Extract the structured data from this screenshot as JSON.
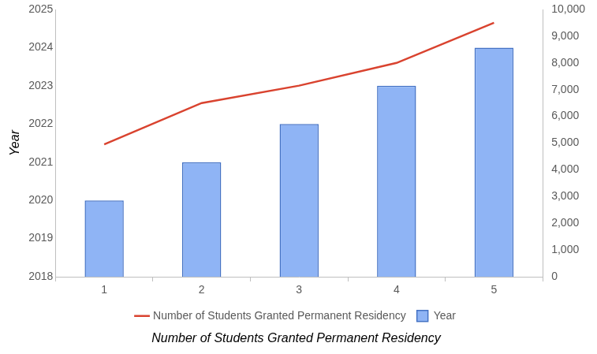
{
  "chart_data": {
    "type": "bar",
    "x_label": "Number of Students Granted Permanent Residency",
    "y_label": "Year",
    "categories": [
      "1",
      "2",
      "3",
      "4",
      "5"
    ],
    "series": [
      {
        "name": "Year",
        "type": "bar",
        "color": "#8fb4f5",
        "values": [
          2020,
          2021,
          2022,
          2023,
          2024
        ]
      },
      {
        "name": "Number of Students Granted Permanent Residency",
        "type": "line",
        "axis": "y2",
        "color": "#d9432f",
        "values": [
          4950,
          6500,
          7150,
          8000,
          9500
        ]
      }
    ],
    "ylim": [
      2018,
      2025
    ],
    "yticks": [
      2018,
      2019,
      2020,
      2021,
      2022,
      2023,
      2024,
      2025
    ],
    "y2lim": [
      0,
      10000
    ],
    "y2ticks": [
      0,
      {
        "value": 1000,
        "label": "1,000"
      },
      {
        "value": 2000,
        "label": "2,000"
      },
      {
        "value": 3000,
        "label": "3,000"
      },
      {
        "value": 4000,
        "label": "4,000"
      },
      {
        "value": 5000,
        "label": "5,000"
      },
      {
        "value": 6000,
        "label": "6,000"
      },
      {
        "value": 7000,
        "label": "7,000"
      },
      {
        "value": 8000,
        "label": "8,000"
      },
      {
        "value": 9000,
        "label": "9,000"
      },
      {
        "value": 10000,
        "label": "10,000"
      }
    ],
    "grid": false,
    "legend": "bottom"
  }
}
